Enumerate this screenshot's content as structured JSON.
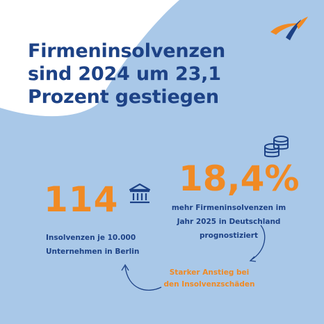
{
  "headline": {
    "line1": "Firmeninsolvenzen",
    "line2": "sind 2024 um 23,1",
    "line3": "Prozent gestiegen"
  },
  "stat_berlin": {
    "value": "114",
    "caption_line1": "Insolvenzen je 10.000",
    "caption_line2": "Unternehmen in Berlin"
  },
  "stat_forecast": {
    "value": "18,4%",
    "caption_line1": "mehr Firmeninsolvenzen im",
    "caption_line2": "Jahr 2025 in Deutschland",
    "caption_line3": "prognostiziert"
  },
  "note": {
    "line1": "Starker Anstieg bei",
    "line2": "den Insolvenzschäden"
  },
  "icons": {
    "logo": "brand-swoosh-logo",
    "bank": "bank-building-icon",
    "coins": "coin-stack-icon"
  },
  "colors": {
    "background_light": "#a9c8e8",
    "white_panel": "#ffffff",
    "navy": "#1d4286",
    "orange": "#f08a24"
  }
}
